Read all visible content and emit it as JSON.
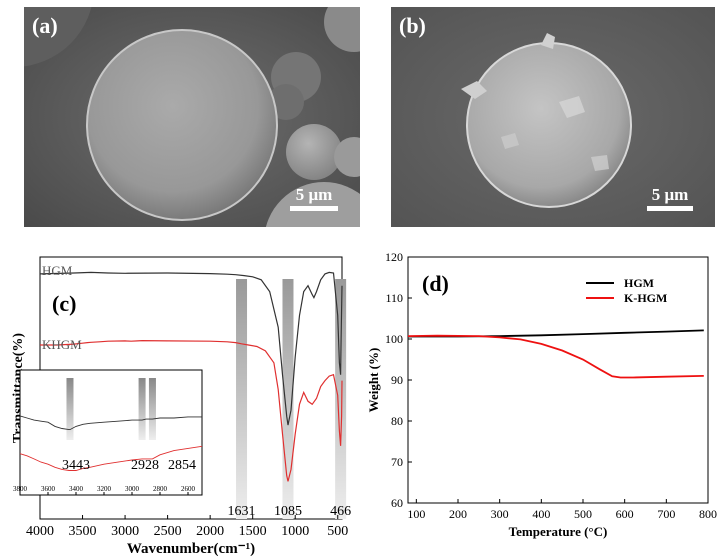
{
  "sem_a": {
    "label": "(a)",
    "scale_label": "5 μm"
  },
  "sem_b": {
    "label": "(b)",
    "scale_label": "5 μm"
  },
  "chart_data": [
    {
      "type": "line",
      "panel_label": "(c)",
      "xlabel": "Wavenumber(cm⁻¹)",
      "ylabel": "Transmittance(%)",
      "xlim": [
        4000,
        450
      ],
      "xticks": [
        4000,
        3500,
        3000,
        2500,
        2000,
        1500,
        1000,
        500
      ],
      "series": [
        {
          "name": "HGM",
          "color": "#333333",
          "x": [
            4000,
            3600,
            3400,
            3200,
            3000,
            2500,
            2000,
            1800,
            1700,
            1600,
            1500,
            1400,
            1300,
            1200,
            1150,
            1100,
            1085,
            1050,
            1000,
            950,
            900,
            850,
            800,
            780,
            750,
            700,
            650,
            600,
            550,
            500,
            480,
            466,
            460,
            450
          ],
          "y": [
            96,
            96.3,
            96.5,
            96.3,
            96.2,
            96.3,
            96.1,
            95.9,
            95.7,
            95.4,
            95,
            94,
            90,
            78,
            62,
            48,
            45,
            50,
            68,
            82,
            90,
            92,
            89,
            88,
            90,
            94,
            96,
            96.5,
            96.3,
            82,
            66,
            62,
            74,
            92
          ]
        },
        {
          "name": "KHGM",
          "color": "#e03030",
          "x": [
            4000,
            3800,
            3600,
            3500,
            3443,
            3400,
            3300,
            3200,
            3000,
            2928,
            2854,
            2800,
            2500,
            2000,
            1800,
            1700,
            1631,
            1550,
            1450,
            1350,
            1250,
            1200,
            1150,
            1100,
            1085,
            1050,
            1000,
            950,
            900,
            850,
            800,
            750,
            700,
            650,
            600,
            550,
            500,
            480,
            466,
            455,
            450
          ],
          "y": [
            72,
            72,
            72.3,
            72.6,
            72.8,
            72.9,
            73.1,
            73.3,
            73.4,
            73.3,
            73.4,
            73.5,
            73.4,
            73.3,
            73.1,
            72.8,
            72.4,
            72,
            71.5,
            70,
            66,
            57,
            42,
            28,
            26,
            30,
            42,
            52,
            56,
            53,
            52,
            54,
            58,
            60,
            61.5,
            62,
            55,
            43,
            38,
            48,
            60
          ]
        }
      ],
      "inset": {
        "xticks": [
          3800,
          3600,
          3400,
          3200,
          3000,
          2800,
          2600
        ],
        "xlim": [
          3800,
          2500
        ],
        "series": [
          {
            "name": "HGM",
            "color": "#333333",
            "x": [
              3800,
              3750,
              3700,
              3650,
              3600,
              3550,
              3500,
              3450,
              3443,
              3400,
              3350,
              3300,
              3200,
              3100,
              3000,
              2928,
              2900,
              2854,
              2800,
              2700,
              2600,
              2500
            ],
            "y": [
              0.62,
              0.6,
              0.58,
              0.57,
              0.56,
              0.52,
              0.5,
              0.49,
              0.49,
              0.52,
              0.54,
              0.55,
              0.56,
              0.57,
              0.58,
              0.58,
              0.59,
              0.59,
              0.6,
              0.6,
              0.61,
              0.61
            ]
          },
          {
            "name": "KHGM",
            "color": "#e03030",
            "x": [
              3800,
              3750,
              3700,
              3650,
              3600,
              3550,
              3500,
              3450,
              3443,
              3400,
              3350,
              3300,
              3200,
              3100,
              3000,
              2928,
              2900,
              2854,
              2800,
              2700,
              2600,
              2500
            ],
            "y": [
              0.26,
              0.24,
              0.21,
              0.18,
              0.16,
              0.13,
              0.11,
              0.1,
              0.1,
              0.1,
              0.12,
              0.13,
              0.16,
              0.18,
              0.2,
              0.21,
              0.21,
              0.21,
              0.25,
              0.29,
              0.31,
              0.33
            ]
          }
        ],
        "peak_bands": [
          3443,
          2928,
          2854
        ],
        "peak_labels": [
          "3443",
          "2928",
          "2854"
        ]
      },
      "peak_bands": [
        1631,
        1085,
        466
      ],
      "peak_labels": [
        "1631",
        "1085",
        "466"
      ]
    },
    {
      "type": "line",
      "panel_label": "(d)",
      "xlabel": "Temperature (°C)",
      "ylabel": "Weight (%)",
      "xlim": [
        80,
        800
      ],
      "ylim": [
        60,
        120
      ],
      "xticks": [
        100,
        200,
        300,
        400,
        500,
        600,
        700,
        800
      ],
      "yticks": [
        60,
        70,
        80,
        90,
        100,
        110,
        120
      ],
      "legend_position": "top-right",
      "series": [
        {
          "name": "HGM",
          "color": "#000000",
          "x": [
            80,
            200,
            300,
            400,
            500,
            600,
            700,
            790
          ],
          "y": [
            100.6,
            100.6,
            100.7,
            100.9,
            101.2,
            101.5,
            101.8,
            102.1
          ]
        },
        {
          "name": "K-HGM",
          "color": "#ee1111",
          "x": [
            80,
            150,
            250,
            300,
            350,
            400,
            450,
            500,
            540,
            570,
            590,
            620,
            700,
            790
          ],
          "y": [
            100.7,
            100.8,
            100.7,
            100.4,
            99.9,
            98.8,
            97.2,
            95,
            92.6,
            90.9,
            90.6,
            90.6,
            90.8,
            91
          ]
        }
      ]
    }
  ]
}
